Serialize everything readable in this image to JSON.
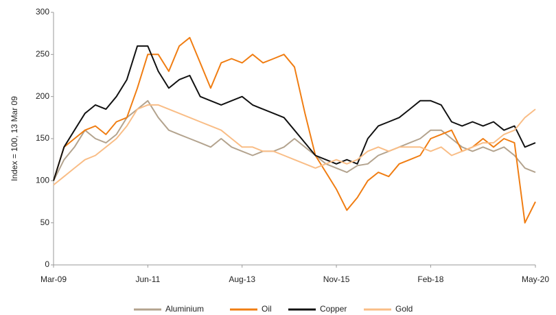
{
  "chart_data": {
    "type": "line",
    "y_label": "Index = 100, 13 Mar 09",
    "categories": [
      "Mar-09",
      null,
      null,
      null,
      null,
      null,
      null,
      null,
      null,
      "Jun-11",
      null,
      null,
      null,
      null,
      null,
      null,
      null,
      null,
      "Aug-13",
      null,
      null,
      null,
      null,
      null,
      null,
      null,
      null,
      "Nov-15",
      null,
      null,
      null,
      null,
      null,
      null,
      null,
      null,
      "Feb-18",
      null,
      null,
      null,
      null,
      null,
      null,
      null,
      null,
      null,
      "May-20"
    ],
    "ylim": [
      0,
      300
    ],
    "yticks": [
      0,
      50,
      100,
      150,
      200,
      250,
      300
    ],
    "grid": false,
    "legend": "bottom",
    "series": [
      {
        "name": "Aluminium",
        "color": "#b3a38e",
        "values": [
          100,
          125,
          140,
          160,
          150,
          145,
          155,
          175,
          185,
          195,
          175,
          160,
          155,
          150,
          145,
          140,
          150,
          140,
          135,
          130,
          135,
          135,
          140,
          150,
          140,
          130,
          120,
          115,
          110,
          118,
          120,
          130,
          135,
          140,
          145,
          150,
          160,
          160,
          150,
          140,
          135,
          140,
          135,
          140,
          130,
          115,
          110
        ]
      },
      {
        "name": "Oil",
        "color": "#f07d12",
        "values": [
          100,
          140,
          150,
          160,
          165,
          155,
          170,
          175,
          210,
          250,
          250,
          230,
          260,
          270,
          240,
          210,
          240,
          245,
          240,
          250,
          240,
          245,
          250,
          235,
          180,
          130,
          110,
          90,
          65,
          80,
          100,
          110,
          105,
          120,
          125,
          130,
          150,
          155,
          160,
          135,
          140,
          150,
          140,
          150,
          145,
          50,
          75
        ]
      },
      {
        "name": "Copper",
        "color": "#111111",
        "values": [
          100,
          140,
          160,
          180,
          190,
          185,
          200,
          220,
          260,
          260,
          230,
          210,
          220,
          225,
          200,
          195,
          190,
          195,
          200,
          190,
          185,
          180,
          175,
          160,
          145,
          130,
          125,
          120,
          125,
          120,
          150,
          165,
          170,
          175,
          185,
          195,
          195,
          190,
          170,
          165,
          170,
          165,
          170,
          160,
          165,
          140,
          145
        ]
      },
      {
        "name": "Gold",
        "color": "#f9bd86",
        "values": [
          95,
          105,
          115,
          125,
          130,
          140,
          150,
          165,
          185,
          190,
          190,
          185,
          180,
          175,
          170,
          165,
          160,
          150,
          140,
          140,
          135,
          135,
          130,
          125,
          120,
          115,
          120,
          125,
          120,
          125,
          135,
          140,
          135,
          140,
          140,
          140,
          135,
          140,
          130,
          135,
          140,
          145,
          145,
          155,
          160,
          175,
          185
        ]
      }
    ]
  }
}
